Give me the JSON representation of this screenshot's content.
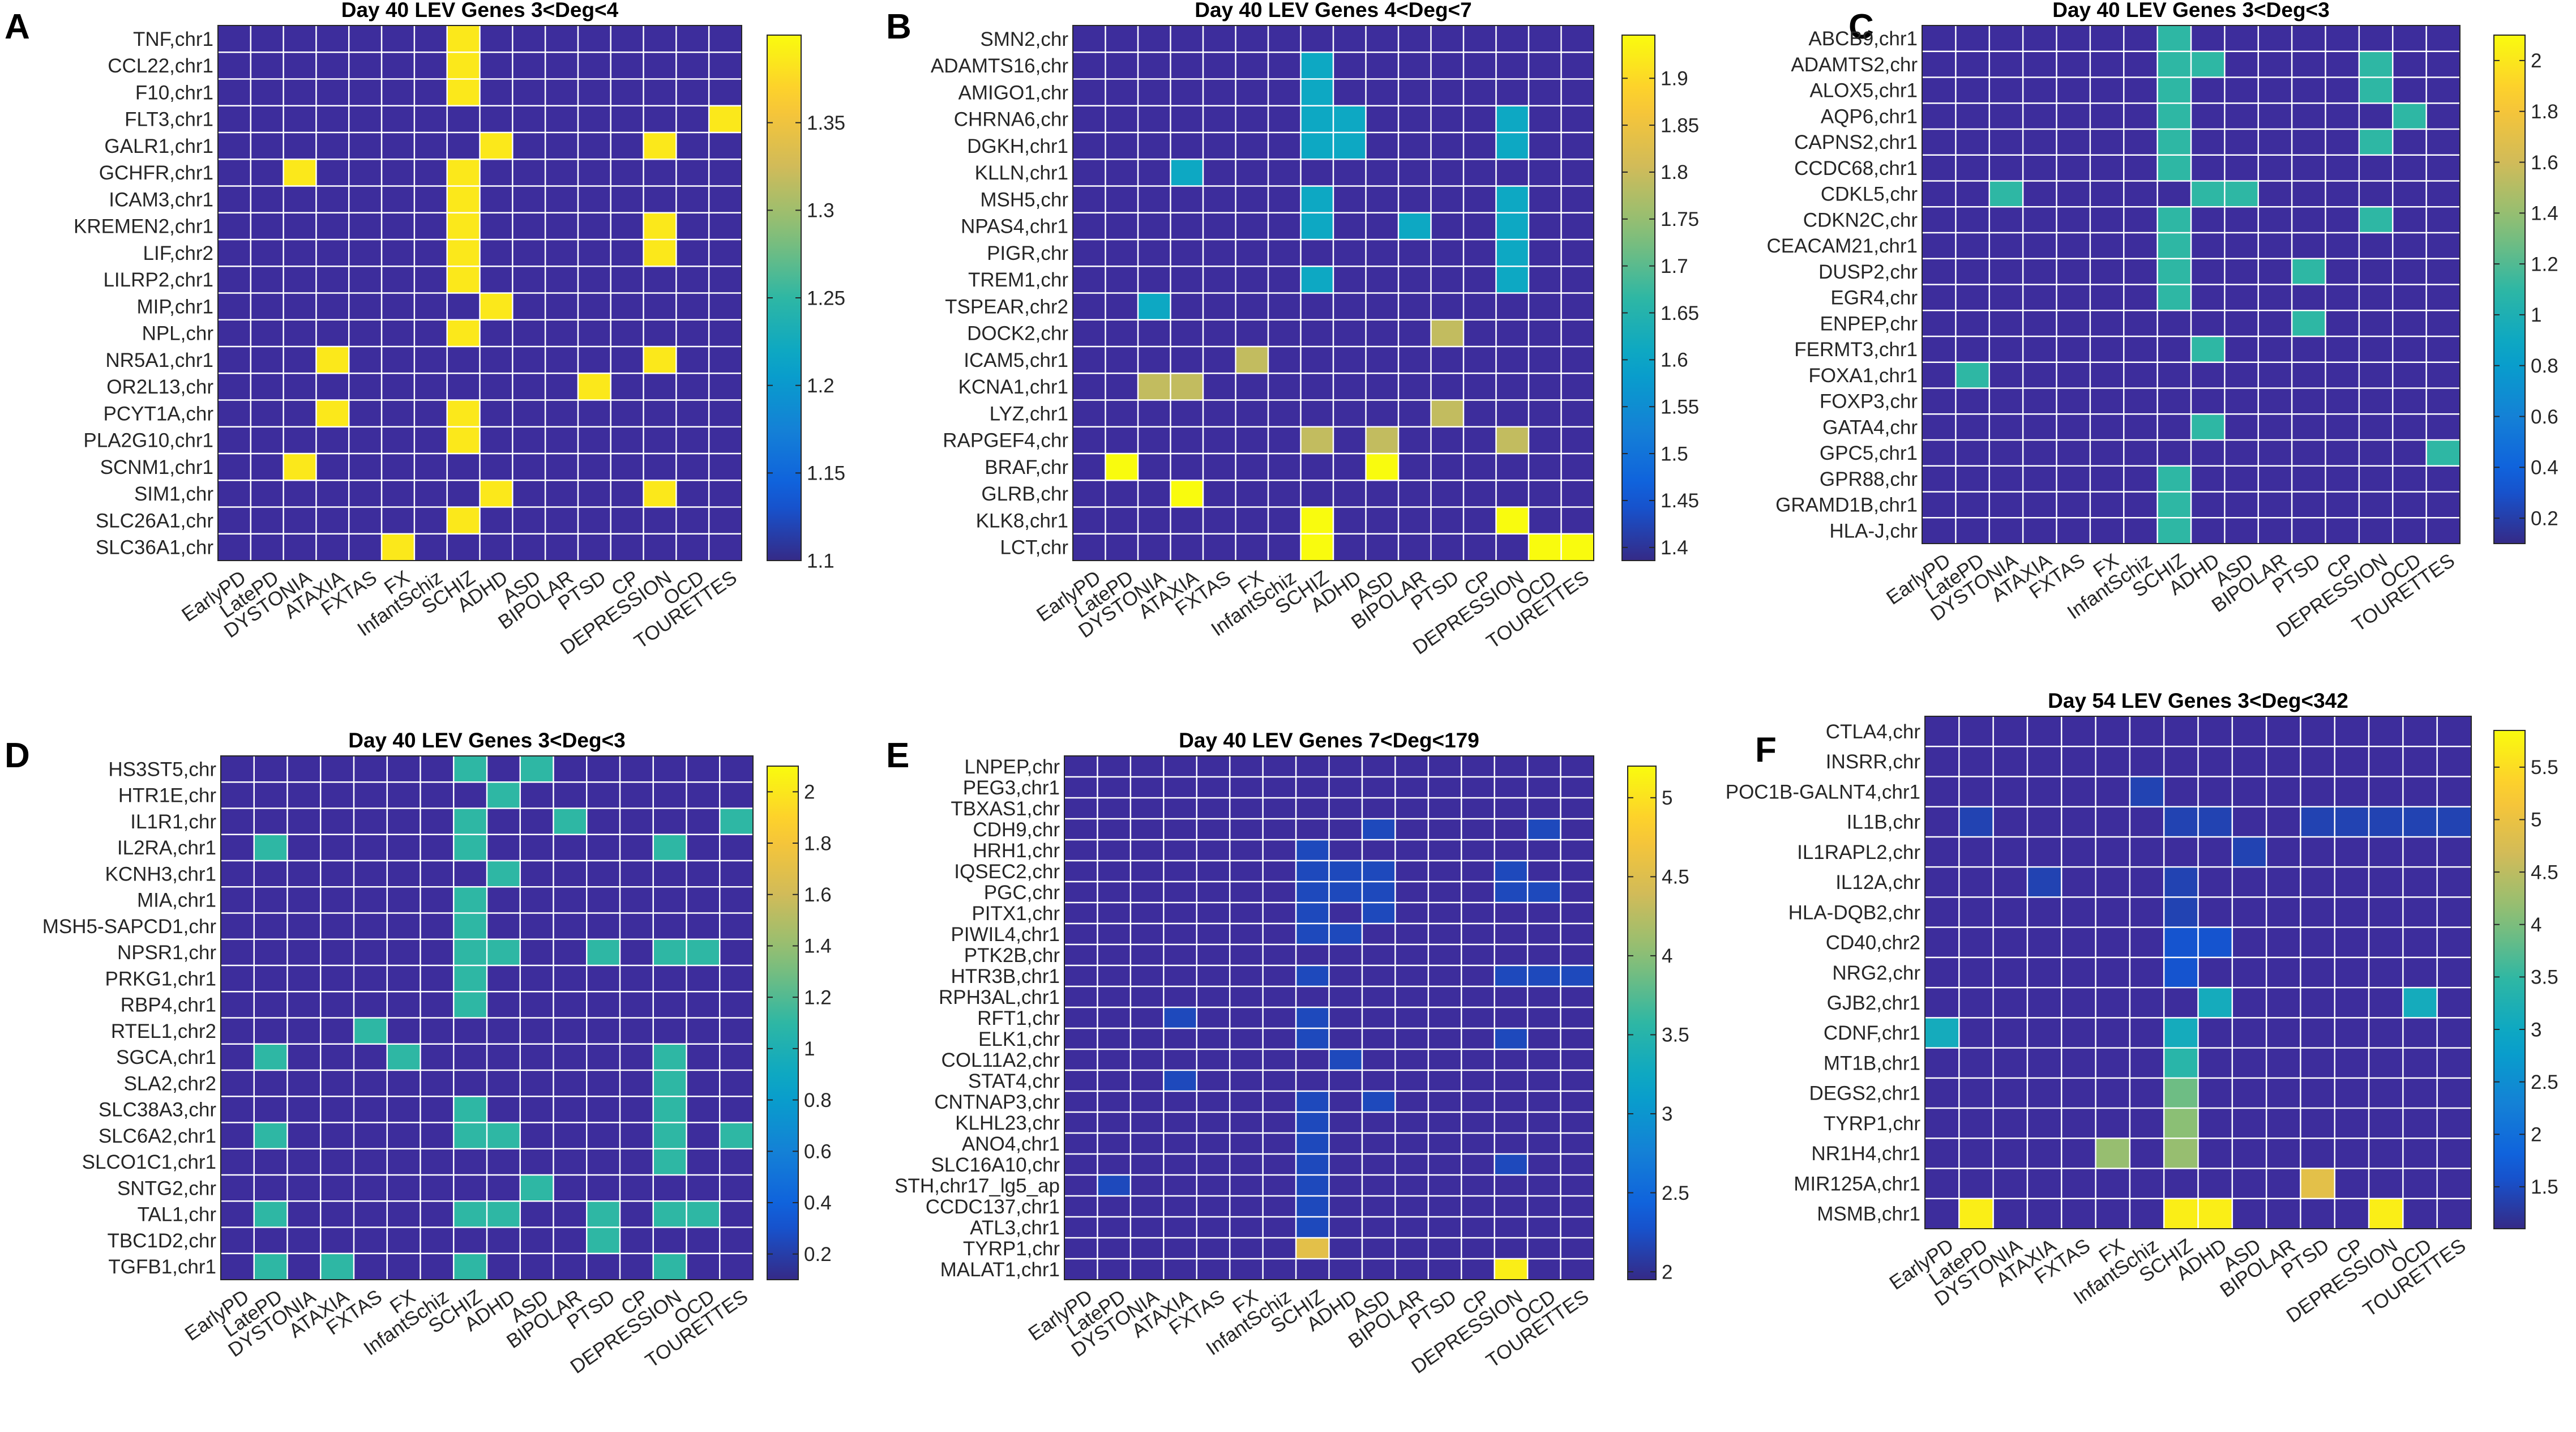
{
  "colormap": {
    "name": "parula",
    "stops": [
      "#352a87",
      "#0f5cdd",
      "#1481d6",
      "#06a4ca",
      "#2eb7a4",
      "#87bf77",
      "#d1bb59",
      "#fec832",
      "#f9fb0e"
    ],
    "empty_color": "#3d2d9c",
    "grid_color": "#ffffff"
  },
  "disease_labels": [
    "EarlyPD",
    "LatePD",
    "DYSTONIA",
    "ATAXIA",
    "FXTAS",
    "FX",
    "InfantSchiz",
    "SCHIZ",
    "ADHD",
    "ASD",
    "BIPOLAR",
    "PTSD",
    "CP",
    "DEPRESSION",
    "OCD",
    "TOURETTES"
  ],
  "chart_data": [
    {
      "panel_label": "A",
      "type": "heatmap",
      "title": "Day 40 LEV Genes 3<Deg<4",
      "rows": [
        "TNF,chr1",
        "CCL22,chr1",
        "F10,chr1",
        "FLT3,chr1",
        "GALR1,chr1",
        "GCHFR,chr1",
        "ICAM3,chr1",
        "KREMEN2,chr1",
        "LIF,chr2",
        "LILRP2,chr1",
        "MIP,chr1",
        "NPL,chr",
        "NR5A1,chr1",
        "OR2L13,chr",
        "PCYT1A,chr",
        "PLA2G10,chr1",
        "SCNM1,chr1",
        "SIM1,chr",
        "SLC26A1,chr",
        "SLC36A1,chr"
      ],
      "clim": [
        1.1,
        1.4
      ],
      "colorbar_ticks": [
        1.1,
        1.15,
        1.2,
        1.25,
        1.3,
        1.35
      ],
      "cells": [
        [
          0,
          7,
          1.386
        ],
        [
          1,
          7,
          1.386
        ],
        [
          2,
          7,
          1.386
        ],
        [
          3,
          15,
          1.386
        ],
        [
          4,
          8,
          1.386
        ],
        [
          4,
          13,
          1.386
        ],
        [
          5,
          2,
          1.386
        ],
        [
          5,
          7,
          1.386
        ],
        [
          6,
          7,
          1.386
        ],
        [
          7,
          7,
          1.386
        ],
        [
          7,
          13,
          1.386
        ],
        [
          8,
          7,
          1.386
        ],
        [
          8,
          13,
          1.386
        ],
        [
          9,
          7,
          1.386
        ],
        [
          10,
          8,
          1.386
        ],
        [
          11,
          7,
          1.386
        ],
        [
          12,
          3,
          1.386
        ],
        [
          12,
          13,
          1.386
        ],
        [
          13,
          11,
          1.386
        ],
        [
          14,
          3,
          1.386
        ],
        [
          14,
          7,
          1.386
        ],
        [
          15,
          7,
          1.386
        ],
        [
          16,
          2,
          1.386
        ],
        [
          17,
          8,
          1.386
        ],
        [
          17,
          13,
          1.386
        ],
        [
          18,
          7,
          1.386
        ],
        [
          19,
          5,
          1.386
        ]
      ]
    },
    {
      "panel_label": "B",
      "type": "heatmap",
      "title": "Day 40 LEV Genes 4<Deg<7",
      "rows": [
        "SMN2,chr",
        "ADAMTS16,chr",
        "AMIGO1,chr",
        "CHRNA6,chr",
        "DGKH,chr1",
        "KLLN,chr1",
        "MSH5,chr",
        "NPAS4,chr1",
        "PIGR,chr",
        "TREM1,chr",
        "TSPEAR,chr2",
        "DOCK2,chr",
        "ICAM5,chr1",
        "KCNA1,chr1",
        "LYZ,chr1",
        "RAPGEF4,chr",
        "BRAF,chr",
        "GLRB,chr",
        "KLK8,chr1",
        "LCT,chr"
      ],
      "clim": [
        1.386,
        1.946
      ],
      "colorbar_ticks": [
        1.4,
        1.45,
        1.5,
        1.55,
        1.6,
        1.65,
        1.7,
        1.75,
        1.8,
        1.85,
        1.9
      ],
      "cells": [
        [
          1,
          7,
          1.609
        ],
        [
          2,
          7,
          1.609
        ],
        [
          3,
          7,
          1.609
        ],
        [
          3,
          8,
          1.609
        ],
        [
          3,
          13,
          1.609
        ],
        [
          4,
          7,
          1.609
        ],
        [
          4,
          8,
          1.609
        ],
        [
          4,
          13,
          1.609
        ],
        [
          5,
          3,
          1.609
        ],
        [
          6,
          7,
          1.609
        ],
        [
          6,
          13,
          1.609
        ],
        [
          7,
          7,
          1.609
        ],
        [
          7,
          10,
          1.609
        ],
        [
          7,
          13,
          1.609
        ],
        [
          8,
          13,
          1.609
        ],
        [
          9,
          7,
          1.609
        ],
        [
          9,
          13,
          1.609
        ],
        [
          10,
          2,
          1.609
        ],
        [
          11,
          11,
          1.792
        ],
        [
          12,
          5,
          1.792
        ],
        [
          13,
          2,
          1.792
        ],
        [
          13,
          3,
          1.792
        ],
        [
          14,
          11,
          1.792
        ],
        [
          15,
          7,
          1.792
        ],
        [
          15,
          9,
          1.792
        ],
        [
          15,
          13,
          1.792
        ],
        [
          16,
          1,
          1.946
        ],
        [
          16,
          9,
          1.946
        ],
        [
          17,
          3,
          1.946
        ],
        [
          18,
          7,
          1.946
        ],
        [
          18,
          13,
          1.946
        ],
        [
          19,
          7,
          1.946
        ],
        [
          19,
          14,
          1.946
        ],
        [
          19,
          15,
          1.946
        ]
      ]
    },
    {
      "panel_label": "C",
      "type": "heatmap",
      "title": "Day 40 LEV Genes 3<Deg<3",
      "rows": [
        "ABCB9,chr1",
        "ADAMTS2,chr",
        "ALOX5,chr1",
        "AQP6,chr1",
        "CAPNS2,chr1",
        "CCDC68,chr1",
        "CDKL5,chr",
        "CDKN2C,chr",
        "CEACAM21,chr1",
        "DUSP2,chr",
        "EGR4,chr",
        "ENPEP,chr",
        "FERMT3,chr1",
        "FOXA1,chr1",
        "FOXP3,chr",
        "GATA4,chr",
        "GPC5,chr1",
        "GPR88,chr",
        "GRAMD1B,chr1",
        "HLA-J,chr"
      ],
      "clim": [
        0.1,
        2.1
      ],
      "colorbar_ticks": [
        0.2,
        0.4,
        0.6,
        0.8,
        1,
        1.2,
        1.4,
        1.6,
        1.8,
        2
      ],
      "cells": [
        [
          0,
          7,
          1.099
        ],
        [
          1,
          7,
          1.099
        ],
        [
          1,
          8,
          1.099
        ],
        [
          1,
          13,
          1.099
        ],
        [
          2,
          7,
          1.099
        ],
        [
          2,
          13,
          1.099
        ],
        [
          3,
          7,
          1.099
        ],
        [
          3,
          14,
          1.099
        ],
        [
          4,
          7,
          1.099
        ],
        [
          4,
          13,
          1.099
        ],
        [
          5,
          7,
          1.099
        ],
        [
          6,
          2,
          1.099
        ],
        [
          6,
          8,
          1.099
        ],
        [
          6,
          9,
          1.099
        ],
        [
          7,
          7,
          1.099
        ],
        [
          7,
          13,
          1.099
        ],
        [
          8,
          7,
          1.099
        ],
        [
          9,
          7,
          1.099
        ],
        [
          9,
          11,
          1.099
        ],
        [
          10,
          7,
          1.099
        ],
        [
          11,
          11,
          1.099
        ],
        [
          12,
          8,
          1.099
        ],
        [
          13,
          1,
          1.099
        ],
        [
          15,
          8,
          1.099
        ],
        [
          16,
          15,
          1.099
        ],
        [
          17,
          7,
          1.099
        ],
        [
          18,
          7,
          1.099
        ],
        [
          19,
          7,
          1.099
        ]
      ]
    },
    {
      "panel_label": "D",
      "type": "heatmap",
      "title": "Day 40 LEV Genes 3<Deg<3",
      "rows": [
        "HS3ST5,chr",
        "HTR1E,chr",
        "IL1R1,chr",
        "IL2RA,chr1",
        "KCNH3,chr1",
        "MIA,chr1",
        "MSH5-SAPCD1,chr",
        "NPSR1,chr",
        "PRKG1,chr1",
        "RBP4,chr1",
        "RTEL1,chr2",
        "SGCA,chr1",
        "SLA2,chr2",
        "SLC38A3,chr",
        "SLC6A2,chr1",
        "SLCO1C1,chr1",
        "SNTG2,chr",
        "TAL1,chr",
        "TBC1D2,chr",
        "TGFB1,chr1"
      ],
      "clim": [
        0.1,
        2.1
      ],
      "colorbar_ticks": [
        0.2,
        0.4,
        0.6,
        0.8,
        1,
        1.2,
        1.4,
        1.6,
        1.8,
        2
      ],
      "cells": [
        [
          0,
          7,
          1.099
        ],
        [
          0,
          9,
          1.099
        ],
        [
          1,
          8,
          1.099
        ],
        [
          2,
          7,
          1.099
        ],
        [
          2,
          10,
          1.099
        ],
        [
          2,
          15,
          1.099
        ],
        [
          3,
          1,
          1.099
        ],
        [
          3,
          7,
          1.099
        ],
        [
          3,
          13,
          1.099
        ],
        [
          4,
          8,
          1.099
        ],
        [
          5,
          7,
          1.099
        ],
        [
          6,
          7,
          1.099
        ],
        [
          7,
          7,
          1.099
        ],
        [
          7,
          8,
          1.099
        ],
        [
          7,
          11,
          1.099
        ],
        [
          7,
          13,
          1.099
        ],
        [
          7,
          14,
          1.099
        ],
        [
          8,
          7,
          1.099
        ],
        [
          9,
          7,
          1.099
        ],
        [
          10,
          4,
          1.099
        ],
        [
          11,
          1,
          1.099
        ],
        [
          11,
          5,
          1.099
        ],
        [
          11,
          13,
          1.099
        ],
        [
          12,
          13,
          1.099
        ],
        [
          13,
          7,
          1.099
        ],
        [
          13,
          13,
          1.099
        ],
        [
          14,
          1,
          1.099
        ],
        [
          14,
          7,
          1.099
        ],
        [
          14,
          8,
          1.099
        ],
        [
          14,
          13,
          1.099
        ],
        [
          14,
          15,
          1.099
        ],
        [
          15,
          13,
          1.099
        ],
        [
          16,
          9,
          1.099
        ],
        [
          17,
          1,
          1.099
        ],
        [
          17,
          7,
          1.099
        ],
        [
          17,
          8,
          1.099
        ],
        [
          17,
          11,
          1.099
        ],
        [
          17,
          13,
          1.099
        ],
        [
          17,
          14,
          1.099
        ],
        [
          18,
          11,
          1.099
        ],
        [
          19,
          1,
          1.099
        ],
        [
          19,
          3,
          1.099
        ],
        [
          19,
          7,
          1.099
        ],
        [
          19,
          13,
          1.099
        ]
      ]
    },
    {
      "panel_label": "E",
      "type": "heatmap",
      "title": "Day 40 LEV Genes 7<Deg<179",
      "rows": [
        "LNPEP,chr",
        "PEG3,chr1",
        "TBXAS1,chr",
        "CDH9,chr",
        "HRH1,chr",
        "IQSEC2,chr",
        "PGC,chr",
        "PITX1,chr",
        "PIWIL4,chr1",
        "PTK2B,chr",
        "HTR3B,chr1",
        "RPH3AL,chr1",
        "RFT1,chr",
        "ELK1,chr",
        "COL11A2,chr",
        "STAT4,chr",
        "CNTNAP3,chr",
        "KLHL23,chr",
        "ANO4,chr1",
        "SLC16A10,chr",
        "STH,chr17_lg5_ap",
        "CCDC137,chr1",
        "ATL3,chr1",
        "TYRP1,chr",
        "MALAT1,chr1"
      ],
      "clim": [
        1.95,
        5.2
      ],
      "colorbar_ticks": [
        2,
        2.5,
        3,
        3.5,
        4,
        4.5,
        5
      ],
      "cells": [
        [
          3,
          9,
          2.2
        ],
        [
          3,
          14,
          2.2
        ],
        [
          4,
          7,
          2.2
        ],
        [
          5,
          7,
          2.2
        ],
        [
          5,
          8,
          2.2
        ],
        [
          5,
          9,
          2.2
        ],
        [
          5,
          13,
          2.2
        ],
        [
          6,
          7,
          2.2
        ],
        [
          6,
          8,
          2.2
        ],
        [
          6,
          9,
          2.2
        ],
        [
          6,
          13,
          2.2
        ],
        [
          6,
          14,
          2.2
        ],
        [
          7,
          7,
          2.2
        ],
        [
          7,
          9,
          2.2
        ],
        [
          8,
          7,
          2.2
        ],
        [
          8,
          8,
          2.2
        ],
        [
          10,
          7,
          2.2
        ],
        [
          10,
          13,
          2.2
        ],
        [
          10,
          14,
          2.2
        ],
        [
          10,
          15,
          2.2
        ],
        [
          12,
          3,
          2.2
        ],
        [
          12,
          7,
          2.2
        ],
        [
          13,
          7,
          2.2
        ],
        [
          13,
          13,
          2.2
        ],
        [
          14,
          8,
          2.2
        ],
        [
          15,
          3,
          2.2
        ],
        [
          16,
          7,
          2.2
        ],
        [
          16,
          9,
          2.2
        ],
        [
          17,
          7,
          2.2
        ],
        [
          18,
          7,
          2.2
        ],
        [
          19,
          7,
          2.2
        ],
        [
          19,
          13,
          2.2
        ],
        [
          20,
          1,
          2.2
        ],
        [
          20,
          7,
          2.2
        ],
        [
          21,
          7,
          2.2
        ],
        [
          22,
          7,
          2.2
        ],
        [
          23,
          7,
          4.55
        ],
        [
          24,
          13,
          5.1
        ]
      ]
    },
    {
      "panel_label": "F",
      "type": "heatmap",
      "title": "Day 54 LEV Genes 3<Deg<342",
      "rows": [
        "CTLA4,chr",
        "INSRR,chr",
        "POC1B-GALNT4,chr1",
        "IL1B,chr",
        "IL1RAPL2,chr",
        "IL12A,chr",
        "HLA-DQB2,chr",
        "CD40,chr2",
        "NRG2,chr",
        "GJB2,chr1",
        "CDNF,chr1",
        "MT1B,chr1",
        "DEGS2,chr1",
        "TYRP1,chr",
        "NR1H4,chr1",
        "MIR125A,chr1",
        "MSMB,chr1"
      ],
      "clim": [
        1.1,
        5.85
      ],
      "colorbar_ticks": [
        1.5,
        2,
        2.5,
        3,
        3.5,
        4,
        4.5,
        5,
        5.5
      ],
      "cells": [
        [
          2,
          6,
          1.4
        ],
        [
          3,
          1,
          1.4
        ],
        [
          3,
          7,
          1.4
        ],
        [
          3,
          8,
          1.4
        ],
        [
          3,
          11,
          1.4
        ],
        [
          3,
          12,
          1.4
        ],
        [
          3,
          13,
          1.4
        ],
        [
          3,
          14,
          1.4
        ],
        [
          3,
          15,
          1.4
        ],
        [
          4,
          9,
          1.4
        ],
        [
          5,
          3,
          1.4
        ],
        [
          5,
          7,
          1.4
        ],
        [
          6,
          7,
          1.4
        ],
        [
          7,
          7,
          1.6
        ],
        [
          7,
          8,
          1.6
        ],
        [
          8,
          7,
          1.6
        ],
        [
          9,
          8,
          3.1
        ],
        [
          9,
          14,
          3.1
        ],
        [
          10,
          0,
          3.1
        ],
        [
          10,
          7,
          3.1
        ],
        [
          11,
          7,
          3.4
        ],
        [
          12,
          7,
          3.9
        ],
        [
          13,
          7,
          4.1
        ],
        [
          14,
          5,
          4.2
        ],
        [
          14,
          7,
          4.2
        ],
        [
          15,
          11,
          4.9
        ],
        [
          16,
          1,
          5.7
        ],
        [
          16,
          7,
          5.7
        ],
        [
          16,
          8,
          5.7
        ],
        [
          16,
          13,
          5.7
        ]
      ]
    }
  ]
}
